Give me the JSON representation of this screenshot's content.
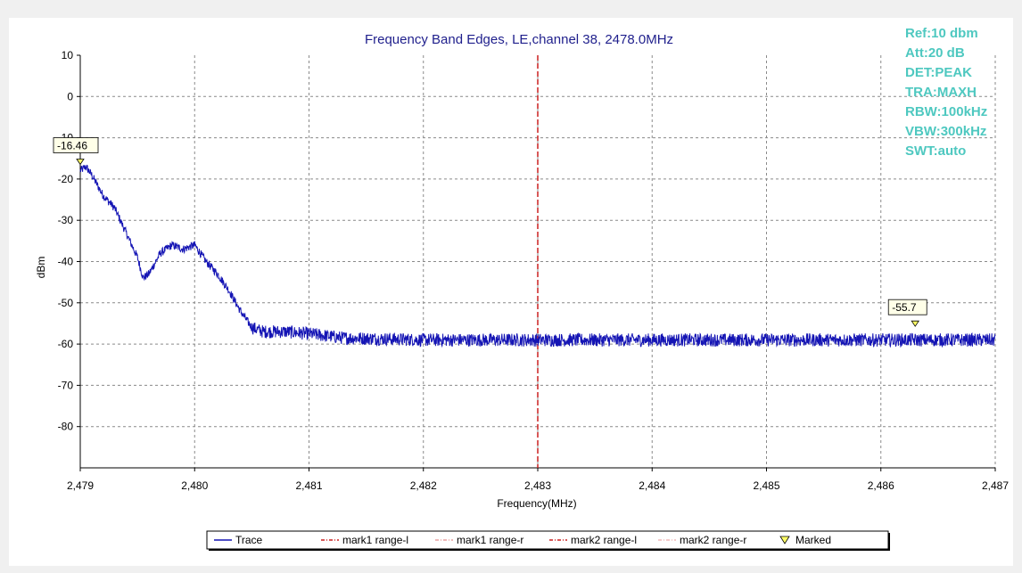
{
  "colors": {
    "trace": "#1414b4",
    "mark1_range_l": "#cc2020",
    "mark1_range_r": "#e8a0a0",
    "mark2_range_l": "#cc2020",
    "mark2_range_r": "#f0b8b8",
    "marked": "#ffff66",
    "settings": "#4ec8c0",
    "title": "#1f1f8c"
  },
  "chart_data": {
    "type": "line",
    "title": "Frequency Band Edges, LE,channel 38, 2478.0MHz",
    "xlabel": "Frequency(MHz)",
    "ylabel": "dBm",
    "xlim": [
      2479,
      2487
    ],
    "ylim": [
      -90,
      10
    ],
    "xticks": [
      2479,
      2480,
      2481,
      2482,
      2483,
      2484,
      2485,
      2486,
      2487
    ],
    "xtick_labels": [
      "2,479",
      "2,480",
      "2,481",
      "2,482",
      "2,483",
      "2,484",
      "2,485",
      "2,486",
      "2,487"
    ],
    "yticks": [
      10,
      0,
      -10,
      -20,
      -30,
      -40,
      -50,
      -60,
      -70,
      -80
    ],
    "ytick_labels": [
      "10",
      "0",
      "-10",
      "-20",
      "-30",
      "-40",
      "-50",
      "-60",
      "-70",
      "-80"
    ],
    "grid": true,
    "legend_position": "bottom",
    "series": [
      {
        "name": "Trace",
        "x": [
          2479.0,
          2479.05,
          2479.1,
          2479.2,
          2479.3,
          2479.4,
          2479.5,
          2479.55,
          2479.6,
          2479.7,
          2479.8,
          2479.9,
          2480.0,
          2480.1,
          2480.2,
          2480.3,
          2480.4,
          2480.5,
          2480.6,
          2480.8,
          2481.0,
          2481.3,
          2481.6,
          2482.0,
          2482.5,
          2483.0,
          2483.5,
          2484.0,
          2484.5,
          2485.0,
          2485.5,
          2486.0,
          2486.5,
          2487.0
        ],
        "y": [
          -18,
          -17,
          -19,
          -24,
          -27,
          -33,
          -39,
          -44,
          -43,
          -38,
          -36,
          -37,
          -36,
          -40,
          -43,
          -47,
          -52,
          -56,
          -57,
          -57,
          -57.5,
          -58.5,
          -58.7,
          -59,
          -59,
          -59,
          -59,
          -59,
          -59,
          -59,
          -59,
          -59,
          -59,
          -59
        ]
      }
    ],
    "markers_range": [
      {
        "name": "mark1 range-l",
        "x": 2483
      },
      {
        "name": "mark1 range-r",
        "x": null
      },
      {
        "name": "mark2 range-l",
        "x": null
      },
      {
        "name": "mark2 range-r",
        "x": null
      }
    ],
    "marked_points": [
      {
        "x": 2479.0,
        "y": -16.46,
        "label": "-16.46"
      },
      {
        "x": 2486.3,
        "y": -55.7,
        "label": "-55.7"
      }
    ]
  },
  "settings": [
    "Ref:10 dbm",
    "Att:20 dB",
    "DET:PEAK",
    "TRA:MAXH",
    "RBW:100kHz",
    "VBW:300kHz",
    "SWT:auto"
  ],
  "legend": {
    "items": [
      {
        "label": "Trace"
      },
      {
        "label": "mark1 range-l"
      },
      {
        "label": "mark1 range-r"
      },
      {
        "label": "mark2 range-l"
      },
      {
        "label": "mark2 range-r"
      },
      {
        "label": "Marked"
      }
    ]
  }
}
